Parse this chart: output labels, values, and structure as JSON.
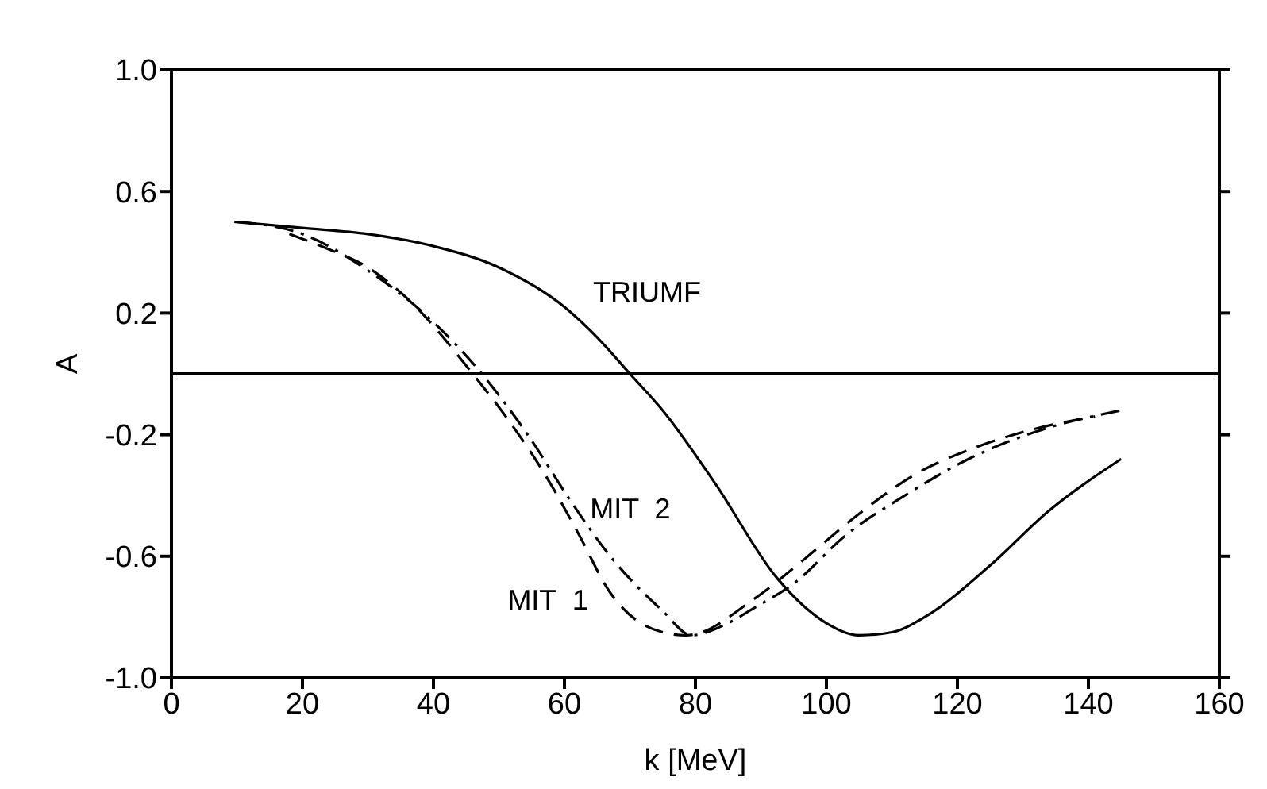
{
  "chart_data": {
    "type": "line",
    "xlabel": "k [MeV]",
    "ylabel": "A",
    "xlim": [
      0,
      160
    ],
    "xticks": [
      0,
      20,
      40,
      60,
      80,
      100,
      120,
      140,
      160
    ],
    "ylim": [
      -1.0,
      1.0
    ],
    "yticks": [
      {
        "value": -1.0,
        "label": "-1.0"
      },
      -0.6,
      -0.2,
      0.2,
      0.6,
      {
        "value": 1.0,
        "label": "1.0"
      }
    ],
    "grid": false,
    "legend": false,
    "marker": "none",
    "ref_lines": [
      {
        "axis": "y",
        "value": 0,
        "color": "#000000"
      }
    ],
    "series": [
      {
        "name": "TRIUMF",
        "color": "#000000",
        "line_style": "solid",
        "x": [
          9.6,
          20,
          30,
          40,
          50,
          60,
          65,
          70,
          75,
          83,
          92.4,
          100,
          105,
          110,
          115,
          125,
          134,
          145
        ],
        "values": [
          0.5,
          0.48,
          0.46,
          0.42,
          0.35,
          0.22,
          0.12,
          0.0,
          -0.12,
          -0.36,
          -0.67,
          -0.82,
          -0.86,
          -0.85,
          -0.8,
          -0.63,
          -0.45,
          -0.28
        ]
      },
      {
        "name": "MIT  1",
        "color": "#000000",
        "line_style": "dashed",
        "x": [
          18,
          24,
          30,
          36.4,
          46,
          50.7,
          57,
          62,
          67,
          75,
          78.6,
          89,
          96.6,
          105,
          113.6,
          123,
          132,
          141
        ],
        "values": [
          0.46,
          0.41,
          0.35,
          0.24,
          0.0,
          -0.13,
          -0.33,
          -0.52,
          -0.72,
          -0.85,
          -0.86,
          -0.74,
          -0.61,
          -0.46,
          -0.33,
          -0.24,
          -0.18,
          -0.14
        ]
      },
      {
        "name": "MIT  2",
        "color": "#000000",
        "line_style": "dashdot",
        "x": [
          10,
          20,
          30,
          39,
          47.4,
          54.7,
          61,
          67,
          75,
          79.4,
          84,
          89,
          95,
          103,
          112,
          121.7,
          132,
          145
        ],
        "values": [
          0.5,
          0.46,
          0.34,
          0.19,
          0.0,
          -0.21,
          -0.42,
          -0.6,
          -0.78,
          -0.86,
          -0.83,
          -0.77,
          -0.69,
          -0.53,
          -0.4,
          -0.28,
          -0.19,
          -0.12
        ]
      }
    ]
  }
}
